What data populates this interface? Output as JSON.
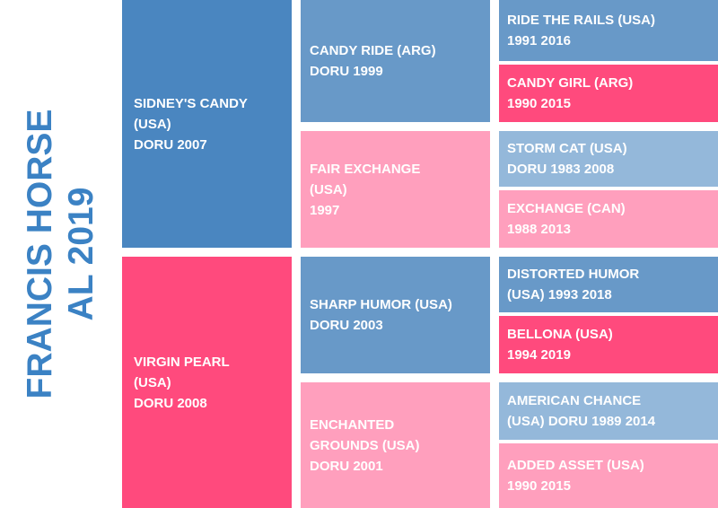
{
  "title": {
    "line1": "FRANCIS HORSE",
    "line2": "AL 2019"
  },
  "colors": {
    "sire_dark": "#4a86c0",
    "sire_mid": "#6899c8",
    "sire_light": "#94b8da",
    "dam_dark": "#ff4a7d",
    "dam_light": "#ff9fbd",
    "title": "#3b82c4"
  },
  "sire": {
    "line1": "SIDNEY'S CANDY",
    "line2": "(USA)",
    "line3": "DORU 2007"
  },
  "dam": {
    "line1": "VIRGIN PEARL",
    "line2": "(USA)",
    "line3": "DORU 2008"
  },
  "sire_sire": {
    "line1": "CANDY RIDE (ARG)",
    "line2": "DORU 1999"
  },
  "sire_dam": {
    "line1": "FAIR EXCHANGE",
    "line2": "(USA)",
    "line3": "1997"
  },
  "dam_sire": {
    "line1": "SHARP HUMOR (USA)",
    "line2": "DORU 2003"
  },
  "dam_dam": {
    "line1": "ENCHANTED",
    "line2": "GROUNDS (USA)",
    "line3": "DORU 2001"
  },
  "g3": [
    {
      "line1": "RIDE THE RAILS (USA)",
      "line2": "1991 2016"
    },
    {
      "line1": "CANDY GIRL (ARG)",
      "line2": "1990 2015"
    },
    {
      "line1": "STORM CAT (USA)",
      "line2": "DORU 1983 2008"
    },
    {
      "line1": "EXCHANGE (CAN)",
      "line2": "1988 2013"
    },
    {
      "line1": "DISTORTED HUMOR",
      "line2": "(USA) 1993 2018"
    },
    {
      "line1": "BELLONA (USA)",
      "line2": "1994 2019"
    },
    {
      "line1": "AMERICAN CHANCE",
      "line2": "(USA) DORU 1989 2014"
    },
    {
      "line1": "ADDED ASSET (USA)",
      "line2": "1990 2015"
    }
  ]
}
